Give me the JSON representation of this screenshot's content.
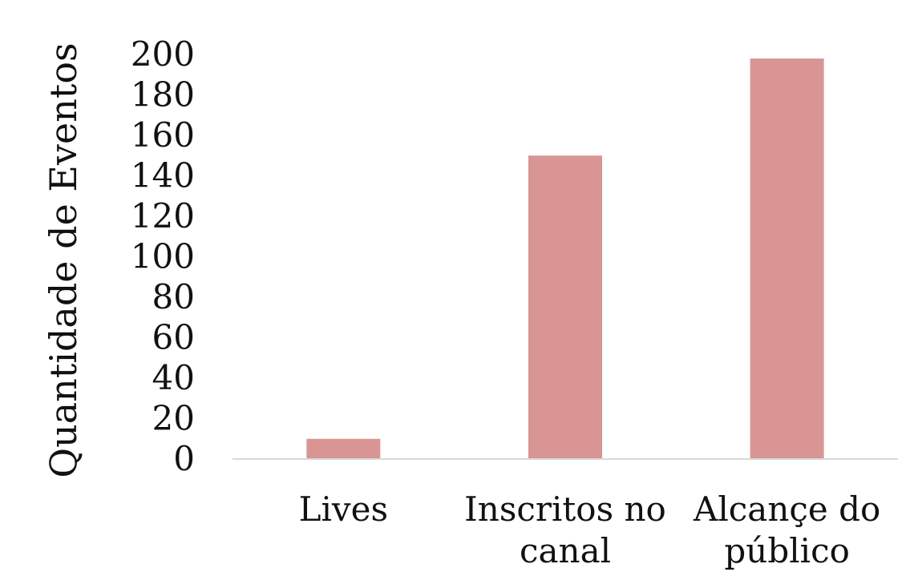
{
  "chart_data": {
    "type": "bar",
    "categories": [
      [
        "Lives"
      ],
      [
        "Inscritos no",
        "canal"
      ],
      [
        "Alcançe do",
        "público"
      ]
    ],
    "values": [
      10,
      150,
      198
    ],
    "ylabel": "Quantidade de Eventos",
    "xlabel": "",
    "ylim": [
      0,
      200
    ],
    "yticks": [
      0,
      20,
      40,
      60,
      80,
      100,
      120,
      140,
      160,
      180,
      200
    ],
    "grid": false,
    "legend": "none",
    "colors": {
      "bar": "#d99594",
      "axis": "#d9d9d9",
      "text": "#111111"
    }
  }
}
